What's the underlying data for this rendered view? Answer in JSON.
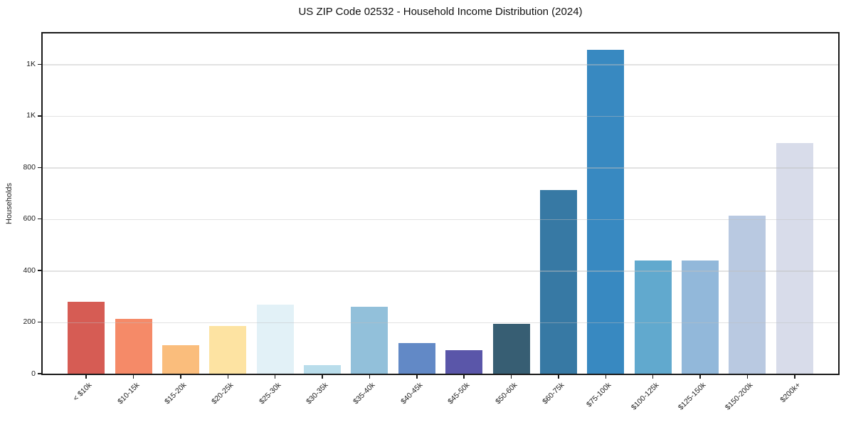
{
  "page": {
    "background": "#ffffff",
    "text_color": "#1a1a1a"
  },
  "chart_data": {
    "type": "bar",
    "title": "US ZIP Code 02532 - Household Income Distribution (2024)",
    "xlabel": "",
    "ylabel": "Households",
    "ylim": [
      0,
      1320
    ],
    "grid": {
      "axis": "y",
      "interval": 200,
      "color": "#e3e3e3",
      "drawn_over_bars": true
    },
    "legend": "none",
    "categories": [
      "< $10k",
      "$10-15k",
      "$15-20k",
      "$20-25k",
      "$25-30k",
      "$30-35k",
      "$35-40k",
      "$40-45k",
      "$45-50k",
      "$50-60k",
      "$60-75k",
      "$75-100k",
      "$100-125k",
      "$125-150k",
      "$150-200k",
      "$200k+"
    ],
    "values": [
      280,
      213,
      110,
      186,
      268,
      33,
      260,
      120,
      90,
      194,
      712,
      1257,
      440,
      438,
      612,
      894
    ],
    "bar_colors": [
      "#d65c54",
      "#f58a68",
      "#fabd7c",
      "#fde3a2",
      "#e2f1f7",
      "#b9ddeb",
      "#92c0da",
      "#6289c6",
      "#5a56a9",
      "#375e73",
      "#3779a4",
      "#3889c1",
      "#61a9ce",
      "#92b8da",
      "#b9c9e1",
      "#d8dcea"
    ],
    "yticks": [
      {
        "value": 0,
        "label": "0"
      },
      {
        "value": 200,
        "label": "200"
      },
      {
        "value": 400,
        "label": "400"
      },
      {
        "value": 600,
        "label": "600"
      },
      {
        "value": 800,
        "label": "800"
      },
      {
        "value": 1000,
        "label": "1K"
      },
      {
        "value": 1200,
        "label": "1K"
      }
    ],
    "x_tick_rotation_deg": 45,
    "spine_color": "#1a1a1a"
  }
}
